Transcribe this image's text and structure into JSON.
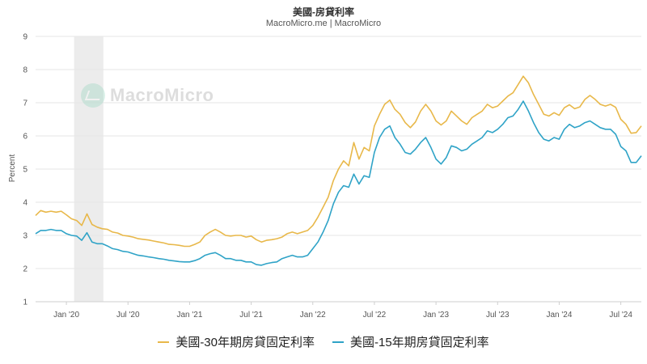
{
  "chart_data": {
    "type": "line",
    "title": "美國-房貸利率",
    "subtitle": "MacroMicro.me | MacroMicro",
    "watermark": "MacroMicro",
    "ylabel": "Percent",
    "xlabel": "",
    "ylim": [
      1,
      9
    ],
    "yticks": [
      1,
      2,
      3,
      4,
      5,
      6,
      7,
      8,
      9
    ],
    "xlim": [
      0,
      58
    ],
    "xticks": [
      {
        "label": "Jan '20",
        "t": 3
      },
      {
        "label": "Jul '20",
        "t": 9
      },
      {
        "label": "Jan '21",
        "t": 15
      },
      {
        "label": "Jul '21",
        "t": 21
      },
      {
        "label": "Jan '22",
        "t": 27
      },
      {
        "label": "Jul '22",
        "t": 33
      },
      {
        "label": "Jan '23",
        "t": 39
      },
      {
        "label": "Jul '23",
        "t": 45
      },
      {
        "label": "Jan '24",
        "t": 51
      },
      {
        "label": "Jul '24",
        "t": 57
      }
    ],
    "recession_band": [
      3.75,
      6.6
    ],
    "grid": true,
    "legend_position": "bottom",
    "series": [
      {
        "name": "美國-30年期房貸固定利率",
        "color": "#e8b84a",
        "points": [
          [
            0.0,
            3.6
          ],
          [
            0.5,
            3.75
          ],
          [
            1.0,
            3.7
          ],
          [
            1.5,
            3.73
          ],
          [
            2.0,
            3.7
          ],
          [
            2.5,
            3.73
          ],
          [
            3.0,
            3.62
          ],
          [
            3.5,
            3.5
          ],
          [
            4.0,
            3.45
          ],
          [
            4.5,
            3.3
          ],
          [
            5.0,
            3.65
          ],
          [
            5.5,
            3.33
          ],
          [
            6.0,
            3.25
          ],
          [
            6.5,
            3.2
          ],
          [
            7.0,
            3.18
          ],
          [
            7.5,
            3.1
          ],
          [
            8.0,
            3.07
          ],
          [
            8.5,
            3.0
          ],
          [
            9.0,
            2.98
          ],
          [
            9.5,
            2.95
          ],
          [
            10.0,
            2.9
          ],
          [
            10.5,
            2.88
          ],
          [
            11.0,
            2.86
          ],
          [
            11.5,
            2.83
          ],
          [
            12.0,
            2.8
          ],
          [
            12.5,
            2.77
          ],
          [
            13.0,
            2.73
          ],
          [
            13.5,
            2.72
          ],
          [
            14.0,
            2.7
          ],
          [
            14.5,
            2.67
          ],
          [
            15.0,
            2.67
          ],
          [
            15.5,
            2.73
          ],
          [
            16.0,
            2.8
          ],
          [
            16.5,
            3.0
          ],
          [
            17.0,
            3.1
          ],
          [
            17.5,
            3.18
          ],
          [
            18.0,
            3.1
          ],
          [
            18.5,
            3.0
          ],
          [
            19.0,
            2.98
          ],
          [
            19.5,
            3.0
          ],
          [
            20.0,
            3.0
          ],
          [
            20.5,
            2.95
          ],
          [
            21.0,
            2.98
          ],
          [
            21.5,
            2.87
          ],
          [
            22.0,
            2.8
          ],
          [
            22.5,
            2.85
          ],
          [
            23.0,
            2.87
          ],
          [
            23.5,
            2.9
          ],
          [
            24.0,
            2.95
          ],
          [
            24.5,
            3.05
          ],
          [
            25.0,
            3.1
          ],
          [
            25.5,
            3.05
          ],
          [
            26.0,
            3.1
          ],
          [
            26.5,
            3.15
          ],
          [
            27.0,
            3.3
          ],
          [
            27.5,
            3.55
          ],
          [
            28.0,
            3.85
          ],
          [
            28.5,
            4.15
          ],
          [
            29.0,
            4.65
          ],
          [
            29.5,
            5.0
          ],
          [
            30.0,
            5.25
          ],
          [
            30.5,
            5.1
          ],
          [
            31.0,
            5.8
          ],
          [
            31.5,
            5.3
          ],
          [
            32.0,
            5.65
          ],
          [
            32.5,
            5.55
          ],
          [
            33.0,
            6.3
          ],
          [
            33.5,
            6.65
          ],
          [
            34.0,
            6.95
          ],
          [
            34.5,
            7.08
          ],
          [
            35.0,
            6.8
          ],
          [
            35.5,
            6.65
          ],
          [
            36.0,
            6.4
          ],
          [
            36.5,
            6.25
          ],
          [
            37.0,
            6.42
          ],
          [
            37.5,
            6.75
          ],
          [
            38.0,
            6.95
          ],
          [
            38.5,
            6.75
          ],
          [
            39.0,
            6.45
          ],
          [
            39.5,
            6.33
          ],
          [
            40.0,
            6.45
          ],
          [
            40.5,
            6.75
          ],
          [
            41.0,
            6.6
          ],
          [
            41.5,
            6.45
          ],
          [
            42.0,
            6.35
          ],
          [
            42.5,
            6.55
          ],
          [
            43.0,
            6.65
          ],
          [
            43.5,
            6.75
          ],
          [
            44.0,
            6.95
          ],
          [
            44.5,
            6.85
          ],
          [
            45.0,
            6.9
          ],
          [
            45.5,
            7.05
          ],
          [
            46.0,
            7.2
          ],
          [
            46.5,
            7.3
          ],
          [
            47.0,
            7.55
          ],
          [
            47.5,
            7.8
          ],
          [
            48.0,
            7.6
          ],
          [
            48.5,
            7.25
          ],
          [
            49.0,
            6.95
          ],
          [
            49.5,
            6.65
          ],
          [
            50.0,
            6.6
          ],
          [
            50.5,
            6.7
          ],
          [
            51.0,
            6.62
          ],
          [
            51.5,
            6.85
          ],
          [
            52.0,
            6.94
          ],
          [
            52.5,
            6.82
          ],
          [
            53.0,
            6.87
          ],
          [
            53.5,
            7.1
          ],
          [
            54.0,
            7.22
          ],
          [
            54.5,
            7.1
          ],
          [
            55.0,
            6.95
          ],
          [
            55.5,
            6.9
          ],
          [
            56.0,
            6.95
          ],
          [
            56.5,
            6.86
          ],
          [
            57.0,
            6.5
          ],
          [
            57.5,
            6.35
          ],
          [
            58.0,
            6.08
          ],
          [
            58.5,
            6.1
          ],
          [
            59.0,
            6.3
          ]
        ]
      },
      {
        "name": "美國-15年期房貸固定利率",
        "color": "#2fa3c7",
        "points": [
          [
            0.0,
            3.05
          ],
          [
            0.5,
            3.15
          ],
          [
            1.0,
            3.15
          ],
          [
            1.5,
            3.18
          ],
          [
            2.0,
            3.15
          ],
          [
            2.5,
            3.15
          ],
          [
            3.0,
            3.05
          ],
          [
            3.5,
            3.0
          ],
          [
            4.0,
            2.98
          ],
          [
            4.5,
            2.85
          ],
          [
            5.0,
            3.08
          ],
          [
            5.5,
            2.8
          ],
          [
            6.0,
            2.75
          ],
          [
            6.5,
            2.75
          ],
          [
            7.0,
            2.68
          ],
          [
            7.5,
            2.6
          ],
          [
            8.0,
            2.57
          ],
          [
            8.5,
            2.52
          ],
          [
            9.0,
            2.5
          ],
          [
            9.5,
            2.45
          ],
          [
            10.0,
            2.4
          ],
          [
            10.5,
            2.38
          ],
          [
            11.0,
            2.35
          ],
          [
            11.5,
            2.33
          ],
          [
            12.0,
            2.3
          ],
          [
            12.5,
            2.28
          ],
          [
            13.0,
            2.25
          ],
          [
            13.5,
            2.23
          ],
          [
            14.0,
            2.21
          ],
          [
            14.5,
            2.2
          ],
          [
            15.0,
            2.2
          ],
          [
            15.5,
            2.24
          ],
          [
            16.0,
            2.3
          ],
          [
            16.5,
            2.4
          ],
          [
            17.0,
            2.45
          ],
          [
            17.5,
            2.48
          ],
          [
            18.0,
            2.4
          ],
          [
            18.5,
            2.3
          ],
          [
            19.0,
            2.3
          ],
          [
            19.5,
            2.25
          ],
          [
            20.0,
            2.25
          ],
          [
            20.5,
            2.2
          ],
          [
            21.0,
            2.2
          ],
          [
            21.5,
            2.12
          ],
          [
            22.0,
            2.1
          ],
          [
            22.5,
            2.15
          ],
          [
            23.0,
            2.18
          ],
          [
            23.5,
            2.2
          ],
          [
            24.0,
            2.3
          ],
          [
            24.5,
            2.35
          ],
          [
            25.0,
            2.4
          ],
          [
            25.5,
            2.35
          ],
          [
            26.0,
            2.35
          ],
          [
            26.5,
            2.4
          ],
          [
            27.0,
            2.6
          ],
          [
            27.5,
            2.8
          ],
          [
            28.0,
            3.1
          ],
          [
            28.5,
            3.45
          ],
          [
            29.0,
            3.95
          ],
          [
            29.5,
            4.3
          ],
          [
            30.0,
            4.5
          ],
          [
            30.5,
            4.45
          ],
          [
            31.0,
            4.85
          ],
          [
            31.5,
            4.55
          ],
          [
            32.0,
            4.8
          ],
          [
            32.5,
            4.75
          ],
          [
            33.0,
            5.5
          ],
          [
            33.5,
            5.95
          ],
          [
            34.0,
            6.2
          ],
          [
            34.5,
            6.3
          ],
          [
            35.0,
            5.95
          ],
          [
            35.5,
            5.75
          ],
          [
            36.0,
            5.5
          ],
          [
            36.5,
            5.45
          ],
          [
            37.0,
            5.6
          ],
          [
            37.5,
            5.8
          ],
          [
            38.0,
            5.95
          ],
          [
            38.5,
            5.65
          ],
          [
            39.0,
            5.3
          ],
          [
            39.5,
            5.15
          ],
          [
            40.0,
            5.35
          ],
          [
            40.5,
            5.7
          ],
          [
            41.0,
            5.65
          ],
          [
            41.5,
            5.55
          ],
          [
            42.0,
            5.6
          ],
          [
            42.5,
            5.75
          ],
          [
            43.0,
            5.85
          ],
          [
            43.5,
            5.95
          ],
          [
            44.0,
            6.15
          ],
          [
            44.5,
            6.1
          ],
          [
            45.0,
            6.2
          ],
          [
            45.5,
            6.35
          ],
          [
            46.0,
            6.55
          ],
          [
            46.5,
            6.6
          ],
          [
            47.0,
            6.8
          ],
          [
            47.5,
            7.05
          ],
          [
            48.0,
            6.75
          ],
          [
            48.5,
            6.4
          ],
          [
            49.0,
            6.1
          ],
          [
            49.5,
            5.9
          ],
          [
            50.0,
            5.85
          ],
          [
            50.5,
            5.95
          ],
          [
            51.0,
            5.9
          ],
          [
            51.5,
            6.2
          ],
          [
            52.0,
            6.35
          ],
          [
            52.5,
            6.25
          ],
          [
            53.0,
            6.3
          ],
          [
            53.5,
            6.4
          ],
          [
            54.0,
            6.45
          ],
          [
            54.5,
            6.35
          ],
          [
            55.0,
            6.25
          ],
          [
            55.5,
            6.2
          ],
          [
            56.0,
            6.2
          ],
          [
            56.5,
            6.05
          ],
          [
            57.0,
            5.68
          ],
          [
            57.5,
            5.55
          ],
          [
            58.0,
            5.2
          ],
          [
            58.5,
            5.2
          ],
          [
            59.0,
            5.4
          ]
        ]
      }
    ]
  }
}
